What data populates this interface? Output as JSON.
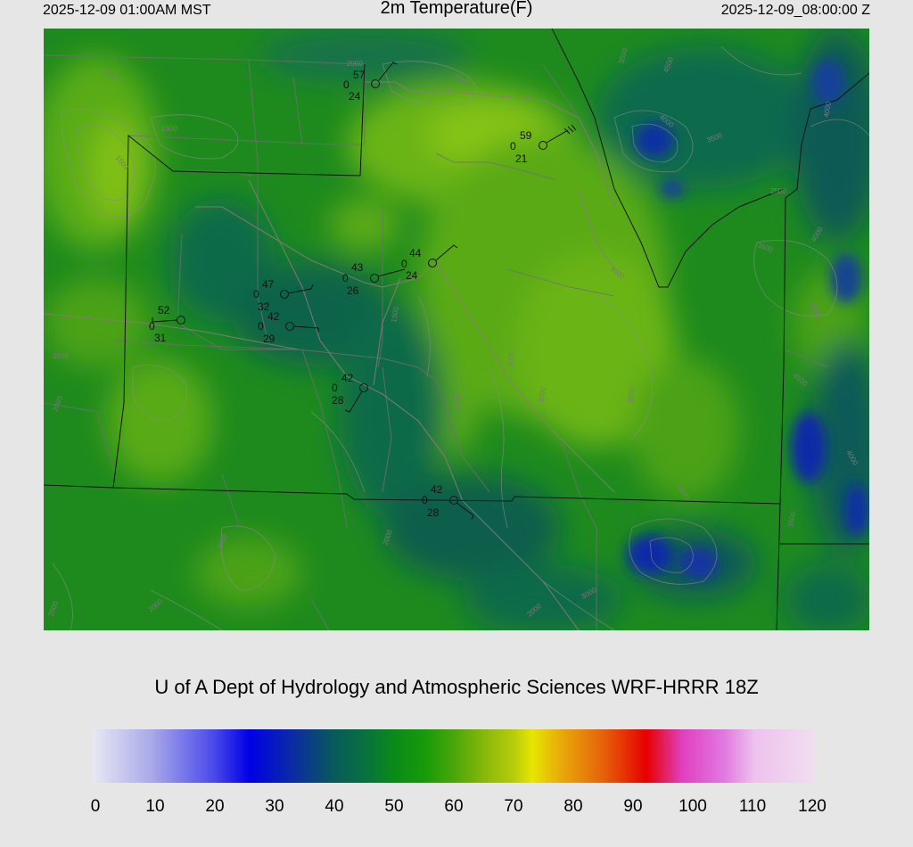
{
  "header": {
    "local_time": "2025-12-09 01:00AM MST",
    "title": "2m Temperature(F)",
    "utc_time": "2025-12-09_08:00:00 Z"
  },
  "credit": "U of A Dept of Hydrology and Atmospheric Sciences WRF-HRRR 18Z",
  "colorbar": {
    "labels": [
      "0",
      "10",
      "20",
      "30",
      "40",
      "50",
      "60",
      "70",
      "80",
      "90",
      "100",
      "110",
      "120"
    ],
    "stops": [
      {
        "value": 0,
        "color": "#e8e8f4"
      },
      {
        "value": 10,
        "color": "#a7a7ea"
      },
      {
        "value": 20,
        "color": "#4b4bea"
      },
      {
        "value": 26,
        "color": "#0000e6"
      },
      {
        "value": 33,
        "color": "#0a2aa6"
      },
      {
        "value": 40,
        "color": "#085a5a"
      },
      {
        "value": 45,
        "color": "#087040"
      },
      {
        "value": 50,
        "color": "#0a8a18"
      },
      {
        "value": 55,
        "color": "#169a0a"
      },
      {
        "value": 60,
        "color": "#4aa60a"
      },
      {
        "value": 65,
        "color": "#86b80a"
      },
      {
        "value": 70,
        "color": "#b8cc0a"
      },
      {
        "value": 73,
        "color": "#e6e600"
      },
      {
        "value": 78,
        "color": "#e8a80a"
      },
      {
        "value": 85,
        "color": "#e6600a"
      },
      {
        "value": 92,
        "color": "#e60000"
      },
      {
        "value": 98,
        "color": "#e040c0"
      },
      {
        "value": 105,
        "color": "#e07ae0"
      },
      {
        "value": 110,
        "color": "#eec2ee"
      },
      {
        "value": 120,
        "color": "#f0dff0"
      }
    ]
  },
  "map": {
    "contour_labels": [
      "1000",
      "1500",
      "2000",
      "2500",
      "3000",
      "3500",
      "4000",
      "4500"
    ],
    "stations": [
      {
        "temp": "57",
        "left": "0",
        "dew": "24"
      },
      {
        "temp": "59",
        "left": "0",
        "dew": "21"
      },
      {
        "temp": "44",
        "left": "0",
        "dew": "24"
      },
      {
        "temp": "43",
        "left": "0",
        "dew": "26"
      },
      {
        "temp": "47",
        "left": "0",
        "dew": "32"
      },
      {
        "temp": "42",
        "left": "0",
        "dew": "29"
      },
      {
        "temp": "52",
        "left": "0",
        "dew": "31"
      },
      {
        "temp": "42",
        "left": "0",
        "dew": "28"
      },
      {
        "temp": "42",
        "left": "0",
        "dew": "28"
      }
    ]
  }
}
